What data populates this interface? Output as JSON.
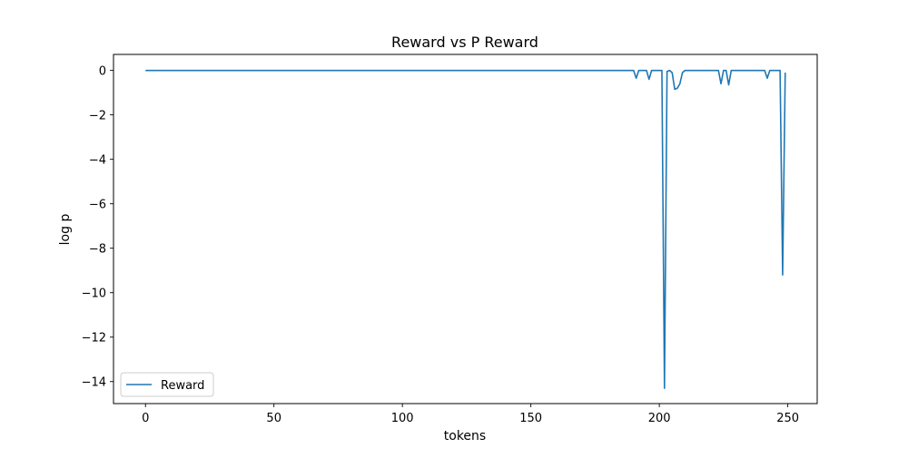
{
  "chart_data": {
    "type": "line",
    "title": "Reward vs P Reward",
    "xlabel": "tokens",
    "ylabel": "log p",
    "xlim": [
      -12.45,
      261.45
    ],
    "ylim": [
      -14.99,
      0.72
    ],
    "xticks": [
      0,
      50,
      100,
      150,
      200,
      250
    ],
    "yticks": [
      0,
      -2,
      -4,
      -6,
      -8,
      -10,
      -12,
      -14
    ],
    "grid": false,
    "legend": {
      "position": "lower-left",
      "entries": [
        "Reward"
      ]
    },
    "series": [
      {
        "name": "Reward",
        "color": "#1f77b4",
        "points": [
          [
            0,
            0
          ],
          [
            190,
            0
          ],
          [
            191,
            -0.35
          ],
          [
            192,
            0
          ],
          [
            195,
            0
          ],
          [
            196,
            -0.4
          ],
          [
            197,
            0
          ],
          [
            201,
            0
          ],
          [
            202,
            -14.3
          ],
          [
            203,
            -0.05
          ],
          [
            204,
            0
          ],
          [
            205,
            -0.1
          ],
          [
            206,
            -0.85
          ],
          [
            207,
            -0.8
          ],
          [
            208,
            -0.6
          ],
          [
            209,
            -0.1
          ],
          [
            210,
            0
          ],
          [
            223,
            0
          ],
          [
            224,
            -0.6
          ],
          [
            225,
            0
          ],
          [
            226,
            0
          ],
          [
            227,
            -0.65
          ],
          [
            228,
            0
          ],
          [
            241,
            0
          ],
          [
            242,
            -0.35
          ],
          [
            243,
            0
          ],
          [
            247,
            0
          ],
          [
            248,
            -9.2
          ],
          [
            249,
            -0.1
          ]
        ]
      }
    ]
  }
}
